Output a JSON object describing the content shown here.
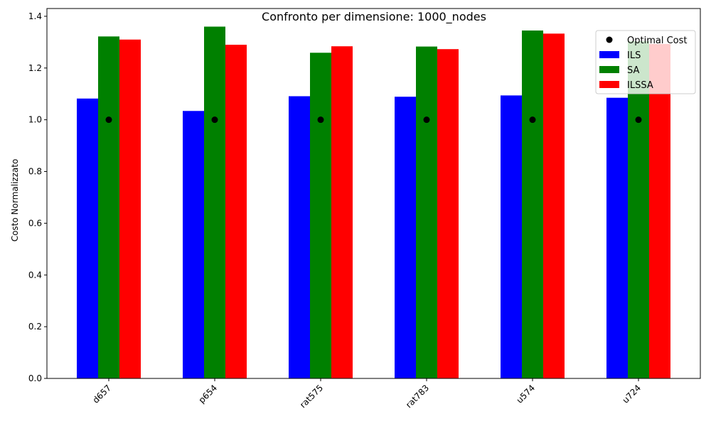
{
  "chart_data": {
    "type": "bar",
    "title": "Confronto per dimensione: 1000_nodes",
    "xlabel": "",
    "ylabel": "Costo Normalizzato",
    "ylim": [
      0,
      1.43
    ],
    "yticks": [
      "0.0",
      "0.2",
      "0.4",
      "0.6",
      "0.8",
      "1.0",
      "1.2",
      "1.4"
    ],
    "categories": [
      "d657",
      "p654",
      "rat575",
      "rat783",
      "u574",
      "u724"
    ],
    "series": [
      {
        "name": "ILS",
        "color": "#0000ff",
        "values": [
          1.082,
          1.034,
          1.091,
          1.089,
          1.094,
          1.085
        ]
      },
      {
        "name": "SA",
        "color": "#008000",
        "values": [
          1.322,
          1.36,
          1.259,
          1.283,
          1.345,
          1.304
        ]
      },
      {
        "name": "ILSSA",
        "color": "#ff0000",
        "values": [
          1.31,
          1.29,
          1.284,
          1.273,
          1.333,
          1.293
        ]
      }
    ],
    "optimal": {
      "name": "Optimal Cost",
      "color": "#000000",
      "values": [
        1.0,
        1.0,
        1.0,
        1.0,
        1.0,
        1.0
      ]
    },
    "legend_position": "top-right",
    "legend_order": [
      "Optimal Cost",
      "ILS",
      "SA",
      "ILSSA"
    ]
  }
}
